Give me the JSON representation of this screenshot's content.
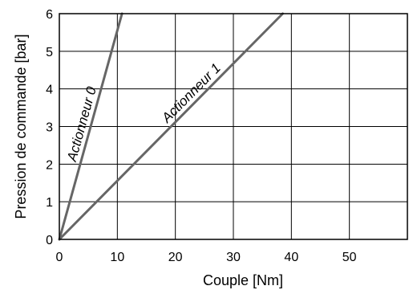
{
  "chart_data": {
    "type": "line",
    "title": "",
    "xlabel": "Couple [Nm]",
    "ylabel": "Pression de commande [bar]",
    "xlim": [
      0,
      60
    ],
    "ylim": [
      0,
      6
    ],
    "x_ticks": [
      0,
      10,
      20,
      30,
      40,
      50
    ],
    "y_ticks": [
      0,
      1,
      2,
      3,
      4,
      5,
      6
    ],
    "grid": true,
    "series": [
      {
        "name": "Actionneur 0",
        "x": [
          0,
          10.8
        ],
        "y": [
          0,
          6
        ],
        "color": "#666666"
      },
      {
        "name": "Actionneur 1",
        "x": [
          0,
          38.5
        ],
        "y": [
          0,
          6
        ],
        "color": "#666666"
      }
    ]
  }
}
